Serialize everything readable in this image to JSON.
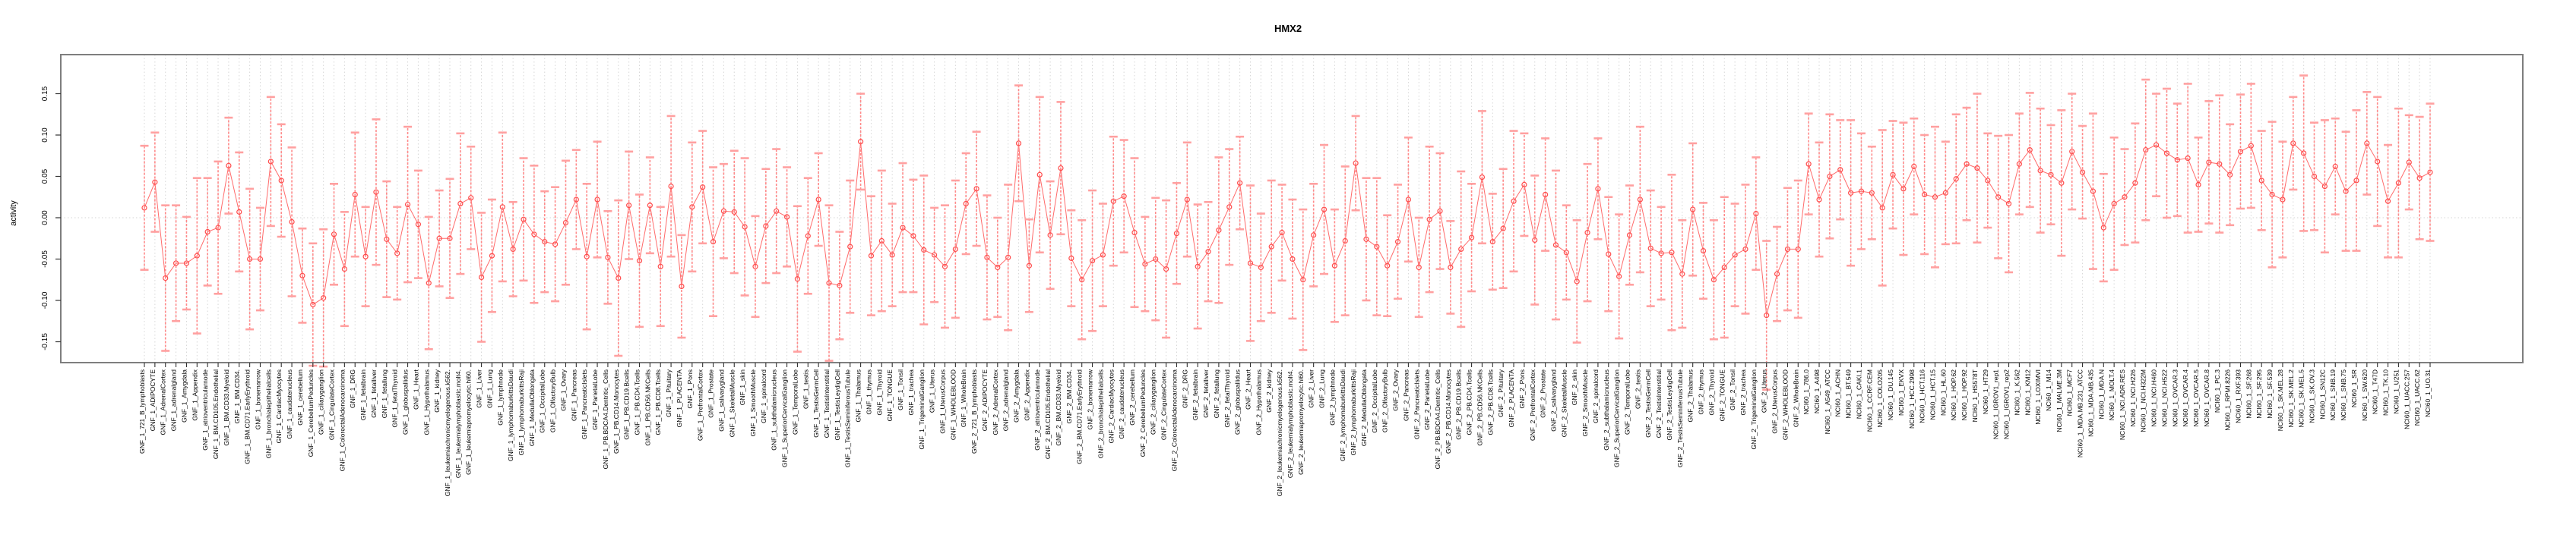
{
  "title": "HMX2",
  "axes": {
    "y_label": "activity",
    "y_ticks": [
      "0.15",
      "0.10",
      "0.05",
      "0.00",
      "-0.05",
      "-0.10",
      "-0.15"
    ],
    "y_tick_values": [
      0.15,
      0.1,
      0.05,
      0.0,
      -0.05,
      -0.1,
      -0.15
    ]
  },
  "style": {
    "box_color": "#7e7e7e",
    "tick_color": "#333333",
    "grid_color": "#d7d7d7",
    "zero_line_color": "#dedede",
    "whisker_color": "#ff8a8a",
    "cap_color": "#ffa0a0",
    "line_color": "#ff6b6b",
    "point_color": "#ff4d4d",
    "label_color": "#000000"
  },
  "chart_data": {
    "type": "line",
    "subtype": "points-with-error-bars",
    "title": "HMX2",
    "xlabel": "",
    "ylabel": "activity",
    "ylim": [
      -0.178,
      0.197
    ],
    "grid": "vertical-dotted-per-category",
    "zero_line": true,
    "legend": "none",
    "point_style": "open-circle",
    "categories": [
      "GNF_1_721_B_lymphoblasts",
      "GNF_1_ADIPOCYTE",
      "GNF_1_AdrenalCortex",
      "GNF_1_adrenalgland",
      "GNF_1_Amygdala",
      "GNF_1_Appendix",
      "GNF_1_atrioventricularnode",
      "GNF_1_BM.CD105.Endothelial",
      "GNF_1_BM.CD33.Myeloid",
      "GNF_1_BM.CD34.",
      "GNF_1_BM.CD71.EarlyErythroid",
      "GNF_1_bonemarrow",
      "GNF_1_bronchialepithelialcells",
      "GNF_1_CardiacMyocytes",
      "GNF_1_caudatenucleus",
      "GNF_1_cerebellum",
      "GNF_1_CerebellumPeduncles",
      "GNF_1_ciliaryganglion",
      "GNF_1_CingulateCortex",
      "GNF_1_ColorectalAdenocarcinoma",
      "GNF_1_DRG",
      "GNF_1_fetalbrain",
      "GNF_1_fetalliver",
      "GNF_1_fetallung",
      "GNF_1_fetalThyroid",
      "GNF_1_globuspallidus",
      "GNF_1_Heart",
      "GNF_1_Hypothalamus",
      "GNF_1_kidney",
      "GNF_1_leukemiachronicmyelogenous.k562.",
      "GNF_1_leukemialymphoblastic.molt4.",
      "GNF_1_leukemiapromyelocytic.hl60.",
      "GNF_1_Liver",
      "GNF_1_Lung",
      "GNF_1_lymphnode",
      "GNF_1_lymphomaburkittsDaudi",
      "GNF_1_lymphomaburkittsRaji",
      "GNF_1_MedullaOblongata",
      "GNF_1_OccipitalLobe",
      "GNF_1_OlfactoryBulb",
      "GNF_1_Ovary",
      "GNF_1_Pancreas",
      "GNF_1_PancreaticIslets",
      "GNF_1_ParietalLobe",
      "GNF_1_PB.BDCA4.Dentritic_Cells",
      "GNF_1_PB.CD14.Monocytes",
      "GNF_1_PB.CD19.Bcells",
      "GNF_1_PB.CD4.Tcells",
      "GNF_1_PB.CD56.NKCells",
      "GNF_1_PB.CD8.Tcells",
      "GNF_1_Pituitary",
      "GNF_1_PLACENTA",
      "GNF_1_Pons",
      "GNF_1_PrefrontalCortex",
      "GNF_1_Prostate",
      "GNF_1_salivarygland",
      "GNF_1_SkeletalMuscle",
      "GNF_1_skin",
      "GNF_1_SmoothMuscle",
      "GNF_1_spinalcord",
      "GNF_1_subthalamicnucleus",
      "GNF_1_SuperiorCervicalGanglion",
      "GNF_1_TemporalLobe",
      "GNF_1_testis",
      "GNF_1_TestisGermCell",
      "GNF_1_TestisInterstitial",
      "GNF_1_TestisLeydigCell",
      "GNF_1_TestisSeminiferousTubule",
      "GNF_1_Thalamus",
      "GNF_1_thymus",
      "GNF_1_Thyroid",
      "GNF_1_TONGUE",
      "GNF_1_Tonsil",
      "GNF_1_trachea",
      "GNF_1_TrigeminalGanglion",
      "GNF_1_Uterus",
      "GNF_1_UterusCorpus",
      "GNF_1_WHOLEBLOOD",
      "GNF_1_WholeBrain",
      "GNF_2_721_B_lymphoblasts",
      "GNF_2_ADIPOCYTE",
      "GNF_2_AdrenalCortex",
      "GNF_2_adrenalgland",
      "GNF_2_Amygdala",
      "GNF_2_Appendix",
      "GNF_2_atrioventricularnode",
      "GNF_2_BM.CD105.Endothelial",
      "GNF_2_BM.CD33.Myeloid",
      "GNF_2_BM.CD34.",
      "GNF_2_BM.CD71.EarlyErythroid",
      "GNF_2_bonemarrow",
      "GNF_2_bronchialepithelialcells",
      "GNF_2_CardiacMyocytes",
      "GNF_2_caudatenucleus",
      "GNF_2_cerebellum",
      "GNF_2_CerebellumPeduncles",
      "GNF_2_ciliaryganglion",
      "GNF_2_CingulateCortex",
      "GNF_2_ColorectalAdenocarcinoma",
      "GNF_2_DRG",
      "GNF_2_fetalbrain",
      "GNF_2_fetalliver",
      "GNF_2_fetallung",
      "GNF_2_fetalThyroid",
      "GNF_2_globuspallidus",
      "GNF_2_Heart",
      "GNF_2_Hypothalamus",
      "GNF_2_kidney",
      "GNF_2_leukemiachronicmyelogenous.k562.",
      "GNF_2_leukemialymphoblastic.molt4.",
      "GNF_2_leukemiapromyelocytic.hl60.",
      "GNF_2_Liver",
      "GNF_2_Lung",
      "GNF_2_lymphnode",
      "GNF_2_lymphomaburkittsDaudi",
      "GNF_2_lymphomaburkittsRaji",
      "GNF_2_MedullaOblongata",
      "GNF_2_OccipitalLobe",
      "GNF_2_OlfactoryBulb",
      "GNF_2_Ovary",
      "GNF_2_Pancreas",
      "GNF_2_PancreaticIslets",
      "GNF_2_ParietalLobe",
      "GNF_2_PB.BDCA4.Dentritic_Cells",
      "GNF_2_PB.CD14.Monocytes",
      "GNF_2_PB.CD19.Bcells",
      "GNF_2_PB.CD4.Tcells",
      "GNF_2_PB.CD56.NKCells",
      "GNF_2_PB.CD8.Tcells",
      "GNF_2_Pituitary",
      "GNF_2_PLACENTA",
      "GNF_2_Pons",
      "GNF_2_PrefrontalCortex",
      "GNF_2_Prostate",
      "GNF_2_salivarygland",
      "GNF_2_SkeletalMuscle",
      "GNF_2_skin",
      "GNF_2_SmoothMuscle",
      "GNF_2_spinalcord",
      "GNF_2_subthalamicnucleus",
      "GNF_2_SuperiorCervicalGanglion",
      "GNF_2_TemporalLobe",
      "GNF_2_testis",
      "GNF_2_TestisGermCell",
      "GNF_2_TestisInterstitial",
      "GNF_2_TestisLeydigCell",
      "GNF_2_TestisSeminiferousTubule",
      "GNF_2_Thalamus",
      "GNF_2_thymus",
      "GNF_2_Thyroid",
      "GNF_2_TONGUE",
      "GNF_2_Tonsil",
      "GNF_2_trachea",
      "GNF_2_TrigeminalGanglion",
      "GNF_2_Uterus",
      "GNF_2_UterusCorpus",
      "GNF_2_WHOLEBLOOD",
      "GNF_2_WholeBrain",
      "NCI60_1_786.0",
      "NCI60_1_A498",
      "NCI60_1_A549_ATCC",
      "NCI60_1_ACHN",
      "NCI60_1_BT.549",
      "NCI60_1_CAKI.1",
      "NCI60_1_CCRF.CEM",
      "NCI60_1_COLO205",
      "NCI60_1_DU.145",
      "NCI60_1_EKVX",
      "NCI60_1_HCC.2998",
      "NCI60_1_HCT.116",
      "NCI60_1_HCT.15",
      "NCI60_1_HL.60",
      "NCI60_1_HOP.62",
      "NCI60_1_HOP.92",
      "NCI60_1_HS578T",
      "NCI60_1_HT29",
      "NCI60_1_IGROV1_rep1",
      "NCI60_1_IGROV1_rep2",
      "NCI60_1_K.562",
      "NCI60_1_KM12",
      "NCI60_1_LOXIMVI",
      "NCI60_1_M14",
      "NCI60_1_MALME.3M",
      "NCI60_1_MCF7",
      "NCI60_1_MDA.MB.231_ATCC",
      "NCI60_1_MDA.MB.435",
      "NCI60_1_MDA.N",
      "NCI60_1_MOLT.4",
      "NCI60_1_NCI.ADR.RES",
      "NCI60_1_NCI.H226",
      "NCI60_1_NCI.H322M",
      "NCI60_1_NCI.H460",
      "NCI60_1_NCI.H522",
      "NCI60_1_OVCAR.3",
      "NCI60_1_OVCAR.4",
      "NCI60_1_OVCAR.5",
      "NCI60_1_OVCAR.8",
      "NCI60_1_PC.3",
      "NCI60_1_RPMI.8226",
      "NCI60_1_RXF.393",
      "NCI60_1_SF.268",
      "NCI60_1_SF.295",
      "NCI60_1_SF.539",
      "NCI60_1_SK.MEL.28",
      "NCI60_1_SK.MEL.2",
      "NCI60_1_SK.MEL.5",
      "NCI60_1_SK.OV.3",
      "NCI60_1_SN12C",
      "NCI60_1_SNB.19",
      "NCI60_1_SNB.75",
      "NCI60_1_SR",
      "NCI60_1_SW.620",
      "NCI60_1_T47D",
      "NCI60_1_TK.10",
      "NCI60_1_U251",
      "NCI60_1_UACC.257",
      "NCI60_1_UACC.62",
      "NCI60_1_UO.31"
    ],
    "values": [
      0.012,
      0.043,
      -0.073,
      -0.055,
      -0.055,
      -0.046,
      -0.017,
      -0.012,
      0.063,
      0.007,
      -0.05,
      -0.05,
      0.068,
      0.045,
      -0.005,
      -0.07,
      -0.105,
      -0.097,
      -0.02,
      -0.062,
      0.028,
      -0.047,
      0.031,
      -0.026,
      -0.043,
      0.016,
      -0.008,
      -0.079,
      -0.025,
      -0.025,
      0.017,
      0.024,
      -0.072,
      -0.046,
      0.013,
      -0.038,
      -0.002,
      -0.02,
      -0.029,
      -0.032,
      -0.006,
      0.022,
      -0.047,
      0.022,
      -0.048,
      -0.073,
      0.015,
      -0.052,
      0.015,
      -0.059,
      0.038,
      -0.083,
      0.013,
      0.037,
      -0.029,
      0.008,
      0.007,
      -0.011,
      -0.059,
      -0.01,
      0.008,
      0.001,
      -0.074,
      -0.022,
      0.022,
      -0.079,
      -0.082,
      -0.035,
      0.092,
      -0.046,
      -0.028,
      -0.045,
      -0.012,
      -0.022,
      -0.039,
      -0.045,
      -0.059,
      -0.038,
      0.017,
      0.035,
      -0.048,
      -0.06,
      -0.048,
      0.09,
      -0.058,
      0.052,
      -0.021,
      0.06,
      -0.049,
      -0.075,
      -0.052,
      -0.045,
      0.02,
      0.026,
      -0.018,
      -0.056,
      -0.05,
      -0.062,
      -0.019,
      0.022,
      -0.059,
      -0.041,
      -0.015,
      0.013,
      0.042,
      -0.055,
      -0.06,
      -0.035,
      -0.018,
      -0.05,
      -0.075,
      -0.021,
      0.01,
      -0.058,
      -0.028,
      0.066,
      -0.026,
      -0.035,
      -0.058,
      -0.029,
      0.022,
      -0.06,
      -0.002,
      0.008,
      -0.06,
      -0.038,
      -0.024,
      0.049,
      -0.029,
      -0.013,
      0.02,
      0.04,
      -0.027,
      0.028,
      -0.033,
      -0.042,
      -0.077,
      -0.018,
      0.035,
      -0.044,
      -0.071,
      -0.021,
      0.022,
      -0.037,
      -0.043,
      -0.042,
      -0.068,
      0.01,
      -0.04,
      -0.075,
      -0.06,
      -0.045,
      -0.038,
      0.005,
      -0.118,
      -0.068,
      -0.038,
      -0.038,
      0.065,
      0.022,
      0.05,
      0.058,
      0.03,
      0.032,
      0.03,
      0.012,
      0.052,
      0.035,
      0.062,
      0.028,
      0.025,
      0.03,
      0.047,
      0.065,
      0.06,
      0.045,
      0.025,
      0.017,
      0.065,
      0.082,
      0.057,
      0.052,
      0.042,
      0.08,
      0.055,
      0.032,
      -0.012,
      0.017,
      0.025,
      0.042,
      0.082,
      0.088,
      0.078,
      0.07,
      0.072,
      0.04,
      0.067,
      0.065,
      0.052,
      0.08,
      0.087,
      0.045,
      0.028,
      0.022,
      0.09,
      0.078,
      0.05,
      0.038,
      0.062,
      0.032,
      0.045,
      0.09,
      0.068,
      0.02,
      0.042,
      0.067,
      0.048,
      0.055
    ],
    "errors": [
      0.075,
      0.06,
      0.088,
      0.07,
      0.056,
      0.094,
      0.065,
      0.08,
      0.058,
      0.072,
      0.085,
      0.062,
      0.078,
      0.068,
      0.09,
      0.057,
      0.074,
      0.083,
      0.061,
      0.069,
      0.075,
      0.06,
      0.088,
      0.07,
      0.056,
      0.094,
      0.065,
      0.08,
      0.058,
      0.072,
      0.085,
      0.062,
      0.078,
      0.068,
      0.09,
      0.057,
      0.074,
      0.083,
      0.061,
      0.069,
      0.075,
      0.06,
      0.088,
      0.07,
      0.056,
      0.094,
      0.065,
      0.08,
      0.058,
      0.072,
      0.085,
      0.062,
      0.078,
      0.068,
      0.09,
      0.057,
      0.074,
      0.083,
      0.061,
      0.069,
      0.075,
      0.06,
      0.088,
      0.07,
      0.056,
      0.094,
      0.065,
      0.08,
      0.058,
      0.072,
      0.085,
      0.062,
      0.078,
      0.068,
      0.09,
      0.057,
      0.074,
      0.083,
      0.061,
      0.069,
      0.075,
      0.06,
      0.088,
      0.07,
      0.056,
      0.094,
      0.065,
      0.08,
      0.058,
      0.072,
      0.085,
      0.062,
      0.078,
      0.068,
      0.09,
      0.057,
      0.074,
      0.083,
      0.061,
      0.069,
      0.075,
      0.06,
      0.088,
      0.07,
      0.056,
      0.094,
      0.065,
      0.08,
      0.058,
      0.072,
      0.085,
      0.062,
      0.078,
      0.068,
      0.09,
      0.057,
      0.074,
      0.083,
      0.061,
      0.069,
      0.075,
      0.06,
      0.088,
      0.07,
      0.056,
      0.094,
      0.065,
      0.08,
      0.058,
      0.072,
      0.085,
      0.062,
      0.078,
      0.068,
      0.09,
      0.057,
      0.074,
      0.083,
      0.061,
      0.069,
      0.075,
      0.06,
      0.088,
      0.07,
      0.056,
      0.094,
      0.065,
      0.08,
      0.058,
      0.072,
      0.085,
      0.062,
      0.078,
      0.068,
      0.09,
      0.057,
      0.074,
      0.083,
      0.061,
      0.069,
      0.075,
      0.06,
      0.088,
      0.07,
      0.056,
      0.094,
      0.065,
      0.08,
      0.058,
      0.072,
      0.085,
      0.062,
      0.078,
      0.068,
      0.09,
      0.057,
      0.074,
      0.083,
      0.061,
      0.069,
      0.075,
      0.06,
      0.088,
      0.07,
      0.056,
      0.094,
      0.065,
      0.08,
      0.058,
      0.072,
      0.085,
      0.062,
      0.078,
      0.068,
      0.09,
      0.057,
      0.074,
      0.083,
      0.061,
      0.069,
      0.075,
      0.06,
      0.088,
      0.07,
      0.056,
      0.094,
      0.065,
      0.08,
      0.058,
      0.072,
      0.085,
      0.062,
      0.078,
      0.068,
      0.09,
      0.057,
      0.074,
      0.083
    ]
  }
}
